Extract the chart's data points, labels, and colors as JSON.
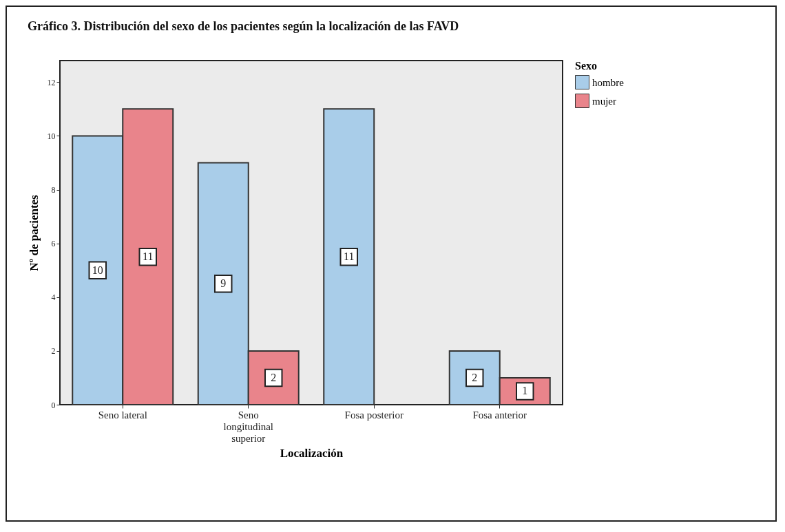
{
  "chart_data": {
    "type": "bar",
    "title": "Gráfico 3. Distribución del sexo de los pacientes según la localización de las FAVD",
    "xlabel": "Localización",
    "ylabel": "Nº de pacientes",
    "legend_title": "Sexo",
    "categories": [
      "Seno lateral",
      "Seno longitudinal superior",
      "Fosa posterior",
      "Fosa anterior"
    ],
    "series": [
      {
        "name": "hombre",
        "color": "#a9cde9",
        "values": [
          10,
          9,
          11,
          2
        ]
      },
      {
        "name": "mujer",
        "color": "#e9848b",
        "values": [
          11,
          2,
          null,
          1
        ]
      }
    ],
    "ylim": [
      0,
      12.8
    ],
    "yticks": [
      0,
      2,
      4,
      6,
      8,
      10,
      12
    ],
    "grid": false,
    "legend": "top right",
    "data_labels": true
  }
}
